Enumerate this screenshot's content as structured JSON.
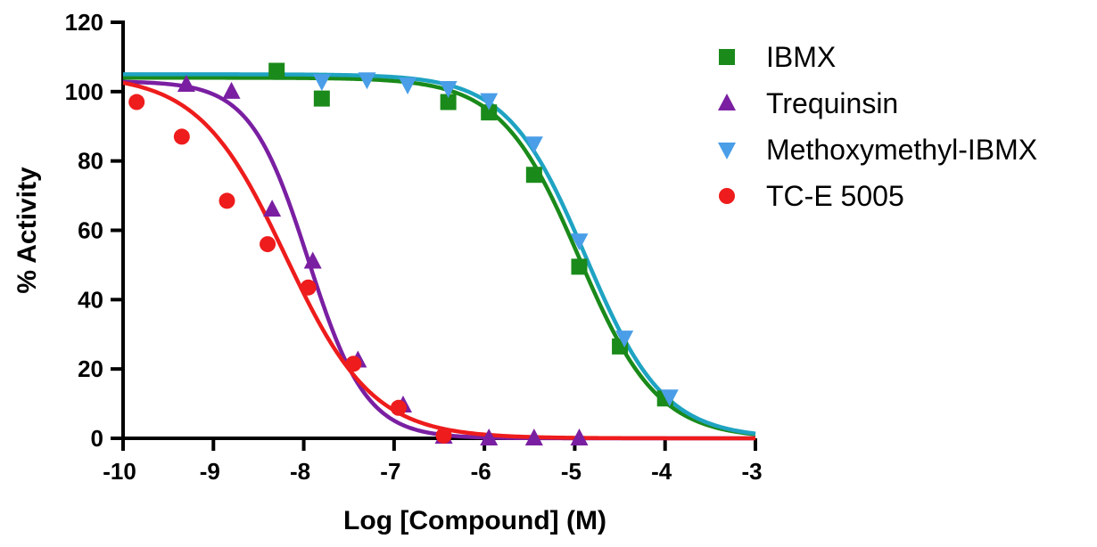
{
  "chart_data": {
    "type": "scatter",
    "title": "",
    "xlabel": "Log [Compound] (M)",
    "ylabel": "% Activity",
    "xlim": [
      -10,
      -3
    ],
    "ylim": [
      0,
      120
    ],
    "xticks": [
      -10,
      -9,
      -8,
      -7,
      -6,
      -5,
      -4,
      -3
    ],
    "xtick_labels": [
      "-10",
      "-9",
      "-8",
      "-7",
      "-6",
      "-5",
      "-4",
      "-3"
    ],
    "yticks": [
      0,
      20,
      40,
      60,
      80,
      100,
      120
    ],
    "ytick_labels": [
      "0",
      "20",
      "40",
      "60",
      "80",
      "100",
      "120"
    ],
    "legend_position": "right",
    "series": [
      {
        "name": "IBMX",
        "color": "#1a8a1a",
        "marker": "square",
        "x": [
          -8.3,
          -7.8,
          -6.4,
          -5.95,
          -5.45,
          -4.95,
          -4.5,
          -4.0
        ],
        "y": [
          106,
          98,
          97,
          94,
          76,
          49.5,
          26.5,
          11.5
        ],
        "fit": {
          "top": 104,
          "bottom": 0,
          "logIC50": -4.95,
          "hill": 1.0
        }
      },
      {
        "name": "Trequinsin",
        "color": "#7a1fa2",
        "marker": "triangle-up",
        "x": [
          -9.3,
          -8.8,
          -8.35,
          -7.9,
          -7.4,
          -6.9,
          -6.45,
          -5.95,
          -5.45,
          -4.95
        ],
        "y": [
          102,
          100,
          66,
          51,
          22.5,
          9.5,
          0.5,
          0,
          0,
          0
        ],
        "fit": {
          "top": 103,
          "bottom": 0,
          "logIC50": -7.95,
          "hill": 1.35
        }
      },
      {
        "name": "Methoxymethyl-IBMX",
        "color": "#4a9ee8",
        "marker": "triangle-down",
        "x": [
          -7.8,
          -7.3,
          -6.85,
          -6.4,
          -5.95,
          -5.45,
          -4.95,
          -4.45,
          -3.95
        ],
        "y": [
          103,
          103.5,
          102,
          101,
          97.5,
          85,
          57,
          29,
          12
        ],
        "fit": {
          "top": 105,
          "bottom": 0,
          "logIC50": -4.88,
          "hill": 1.0
        },
        "fit_color": "#1fa3c2"
      },
      {
        "name": "TC-E 5005",
        "color": "#ee1c1c",
        "marker": "circle",
        "x": [
          -9.85,
          -9.35,
          -8.85,
          -8.4,
          -7.95,
          -7.45,
          -6.95,
          -6.45
        ],
        "y": [
          97,
          87,
          68.5,
          56,
          43.5,
          21.5,
          8.8,
          0.8
        ],
        "fit": {
          "top": 105,
          "bottom": 0,
          "logIC50": -8.2,
          "hill": 0.9
        }
      }
    ]
  }
}
